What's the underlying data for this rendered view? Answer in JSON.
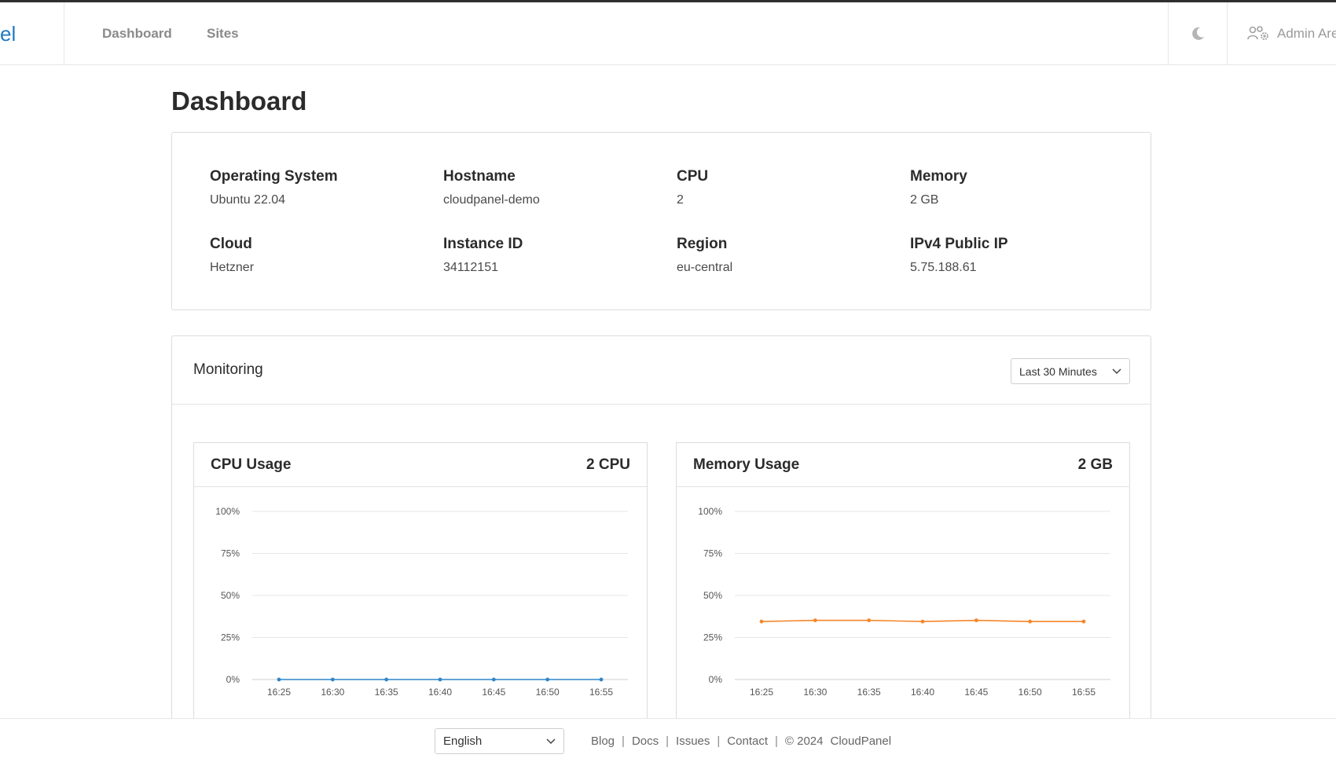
{
  "header": {
    "brand_fragment": "el",
    "nav": [
      {
        "label": "Dashboard"
      },
      {
        "label": "Sites"
      }
    ],
    "theme_icon": "moon-icon",
    "admin_label": "Admin Are",
    "admin_icon": "users-gear-icon"
  },
  "page": {
    "title": "Dashboard"
  },
  "server_info": [
    {
      "label": "Operating System",
      "value": "Ubuntu 22.04"
    },
    {
      "label": "Hostname",
      "value": "cloudpanel-demo"
    },
    {
      "label": "CPU",
      "value": "2"
    },
    {
      "label": "Memory",
      "value": "2 GB"
    },
    {
      "label": "Cloud",
      "value": "Hetzner"
    },
    {
      "label": "Instance ID",
      "value": "34112151"
    },
    {
      "label": "Region",
      "value": "eu-central"
    },
    {
      "label": "IPv4 Public IP",
      "value": "5.75.188.61"
    }
  ],
  "monitoring": {
    "title": "Monitoring",
    "range_selected": "Last 30 Minutes"
  },
  "colors": {
    "cpu_series": "#2f86c8",
    "memory_series": "#f5862a",
    "grid": "#e6e6e6",
    "brand": "#1f7ac2"
  },
  "chart_data": [
    {
      "type": "line",
      "title": "CPU Usage",
      "badge": "2 CPU",
      "x": [
        "16:25",
        "16:30",
        "16:35",
        "16:40",
        "16:45",
        "16:50",
        "16:55"
      ],
      "y_ticks": [
        "100%",
        "75%",
        "50%",
        "25%",
        "0%"
      ],
      "ylim": [
        0,
        100
      ],
      "series": [
        {
          "values": [
            0,
            0,
            0,
            0,
            0,
            0,
            0
          ],
          "color": "#2f86c8"
        }
      ],
      "grid": true
    },
    {
      "type": "line",
      "title": "Memory Usage",
      "badge": "2 GB",
      "x": [
        "16:25",
        "16:30",
        "16:35",
        "16:40",
        "16:45",
        "16:50",
        "16:55"
      ],
      "y_ticks": [
        "100%",
        "75%",
        "50%",
        "25%",
        "0%"
      ],
      "ylim": [
        0,
        100
      ],
      "series": [
        {
          "values": [
            34.5,
            35.2,
            35.2,
            34.5,
            35.2,
            34.5,
            34.5
          ],
          "color": "#f5862a"
        }
      ],
      "grid": true
    }
  ],
  "footer": {
    "language": "English",
    "links": [
      {
        "label": "Blog"
      },
      {
        "label": "Docs"
      },
      {
        "label": "Issues"
      },
      {
        "label": "Contact"
      }
    ],
    "copyright": "© 2024",
    "product": "CloudPanel"
  }
}
